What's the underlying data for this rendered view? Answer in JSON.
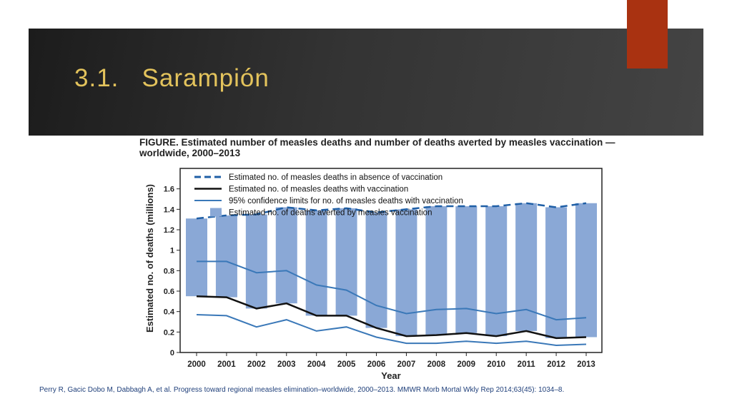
{
  "slide": {
    "title": "3.1.   Sarampión",
    "citation": "Perry R, Gacic Dobo M, Dabbagh A, et al. Progress toward regional measles elimination–worldwide, 2000–2013. MMWR Morb Mortal Wkly Rep 2014;63(45): 1034–8."
  },
  "colors": {
    "header_dark": "#2a2a2a",
    "accent": "#a93211",
    "title_gold": "#e3c35c",
    "bar": "#8aa8d6",
    "absence_line": "#1f5fa6",
    "with_vaccination_line": "#111111",
    "ci_line": "#3a78b8"
  },
  "chart_data": {
    "type": "bar",
    "title": "FIGURE. Estimated number of measles deaths and number of deaths averted by measles vaccination — worldwide, 2000–2013",
    "xlabel": "Year",
    "ylabel": "Estimated no. of deaths (millions)",
    "ylim": [
      0,
      1.8
    ],
    "yticks": [
      "0",
      "0.2",
      "0.4",
      "0.6",
      "0.8",
      "1",
      "1.2",
      "1.4",
      "1.6"
    ],
    "categories": [
      "2000",
      "2001",
      "2002",
      "2003",
      "2004",
      "2005",
      "2006",
      "2007",
      "2008",
      "2009",
      "2010",
      "2011",
      "2012",
      "2013"
    ],
    "legend_position": "top",
    "grid": false,
    "legend": [
      "Estimated no. of measles deaths in absence of vaccination",
      "Estimated no. of measles deaths with vaccination",
      "95% confidence limits for no. of measles deaths with vaccination",
      "Estimated no. of deaths averted by measles vaccination"
    ],
    "series": [
      {
        "name": "Estimated no. of measles deaths in absence of vaccination",
        "type": "line",
        "style": "dashed",
        "values": [
          1.31,
          1.34,
          1.35,
          1.42,
          1.39,
          1.41,
          1.37,
          1.4,
          1.43,
          1.43,
          1.43,
          1.46,
          1.42,
          1.46
        ]
      },
      {
        "name": "Estimated no. of measles deaths with vaccination",
        "type": "line",
        "values": [
          0.55,
          0.54,
          0.43,
          0.48,
          0.36,
          0.36,
          0.24,
          0.16,
          0.17,
          0.19,
          0.16,
          0.21,
          0.14,
          0.15
        ]
      },
      {
        "name": "95% confidence limits for no. of measles deaths with vaccination",
        "type": "band",
        "upper": [
          0.89,
          0.89,
          0.78,
          0.8,
          0.66,
          0.61,
          0.46,
          0.38,
          0.42,
          0.43,
          0.38,
          0.42,
          0.32,
          0.34
        ],
        "lower": [
          0.37,
          0.36,
          0.25,
          0.32,
          0.21,
          0.25,
          0.15,
          0.09,
          0.09,
          0.11,
          0.09,
          0.11,
          0.07,
          0.08
        ]
      },
      {
        "name": "Estimated no. of deaths averted by measles vaccination",
        "type": "bar_range"
      }
    ]
  }
}
